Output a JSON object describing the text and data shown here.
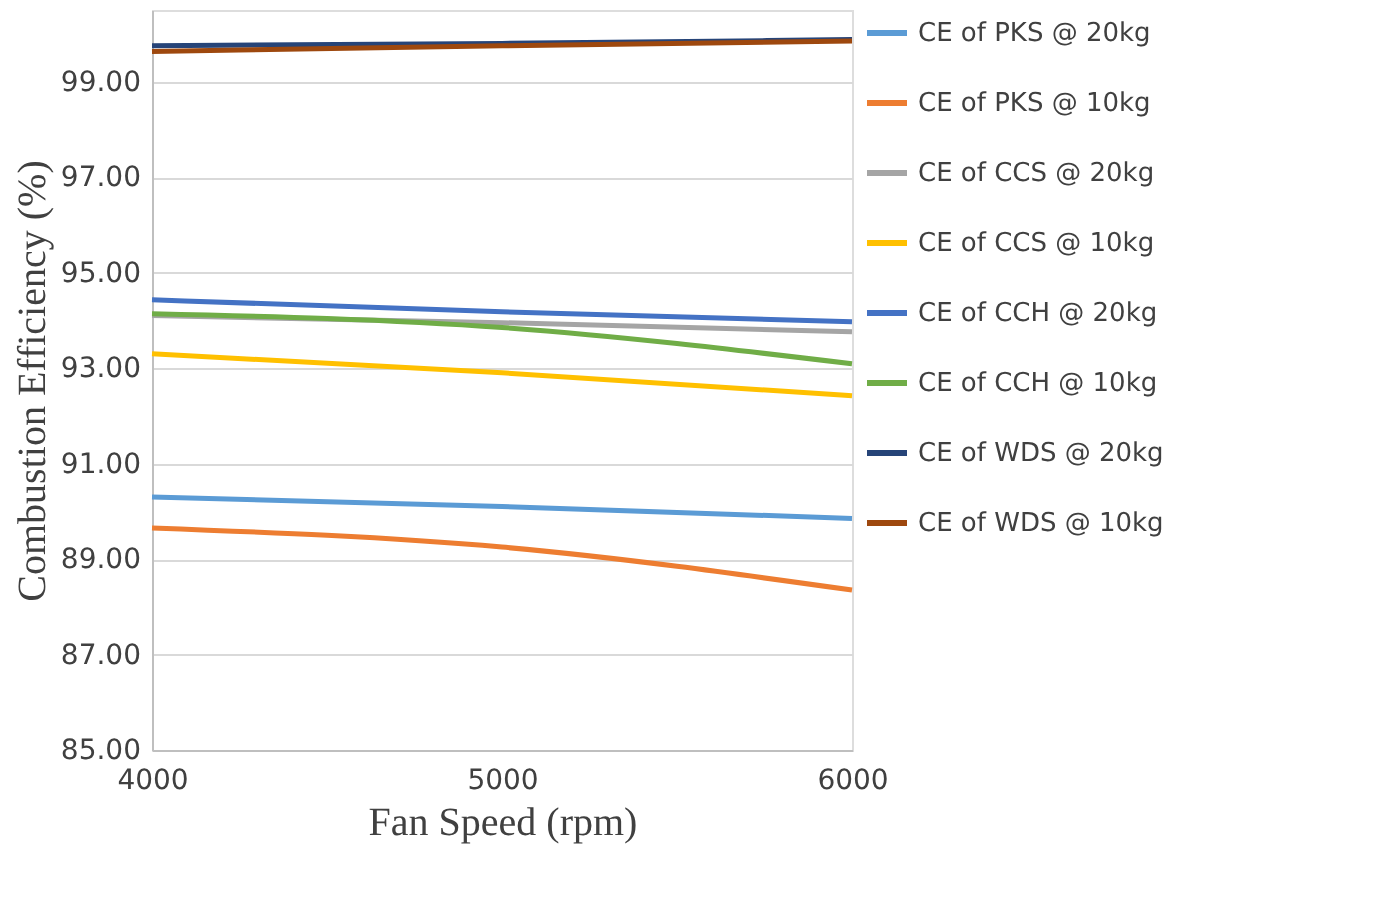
{
  "chart_data": {
    "type": "line",
    "xlabel": "Fan Speed (rpm)",
    "ylabel": "Combustion Efficiency (%)",
    "x": [
      4000,
      5000,
      6000
    ],
    "xlim": [
      4000,
      6000
    ],
    "xticks": [
      4000,
      5000,
      6000
    ],
    "ylim": [
      85,
      100.5
    ],
    "yticks": [
      {
        "value": 85,
        "label": "85.00"
      },
      {
        "value": 87,
        "label": "87.00"
      },
      {
        "value": 89,
        "label": "89.00"
      },
      {
        "value": 91,
        "label": "91.00"
      },
      {
        "value": 93,
        "label": "93.00"
      },
      {
        "value": 95,
        "label": "95.00"
      },
      {
        "value": 97,
        "label": "97.00"
      },
      {
        "value": 99,
        "label": "99.00"
      }
    ],
    "grid": "y",
    "legend": "right",
    "marker": "none",
    "line_style": "solid",
    "series": [
      {
        "name": "CE of PKS @ 20kg",
        "color": "#5b9bd5",
        "values": [
          90.3,
          90.1,
          89.85
        ]
      },
      {
        "name": "CE of PKS @ 10kg",
        "color": "#ed7d31",
        "values": [
          89.65,
          89.25,
          88.35
        ]
      },
      {
        "name": "CE of CCS @ 20kg",
        "color": "#a5a5a5",
        "values": [
          94.1,
          93.95,
          93.76
        ]
      },
      {
        "name": "CE of CCS @ 10kg",
        "color": "#ffc000",
        "values": [
          93.3,
          92.9,
          92.42
        ]
      },
      {
        "name": "CE of CCH @ 20kg",
        "color": "#4472c4",
        "values": [
          94.43,
          94.18,
          93.97
        ]
      },
      {
        "name": "CE of CCH @ 10kg",
        "color": "#70ad47",
        "values": [
          94.14,
          93.85,
          93.09
        ]
      },
      {
        "name": "CE of WDS @ 20kg",
        "color": "#264478",
        "values": [
          99.75,
          99.8,
          99.88
        ]
      },
      {
        "name": "CE of WDS @ 10kg",
        "color": "#9e480e",
        "values": [
          99.63,
          99.75,
          99.85
        ]
      }
    ]
  }
}
